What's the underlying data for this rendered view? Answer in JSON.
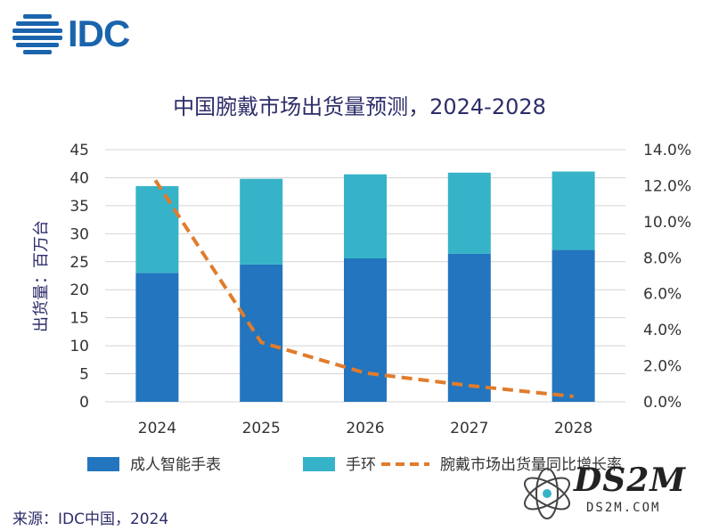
{
  "brand": {
    "logo_text": "IDC",
    "logo_color": "#1a64ad"
  },
  "chart_data": {
    "type": "bar",
    "title": "中国腕戴市场出货量预测，2024-2028",
    "categories": [
      "2024",
      "2025",
      "2026",
      "2027",
      "2028"
    ],
    "series": [
      {
        "name": "成人智能手表",
        "values": [
          23,
          24.5,
          25.6,
          26.4,
          27.1
        ],
        "color": "#2275be",
        "stacked": true
      },
      {
        "name": "手环",
        "values": [
          15.5,
          15.3,
          15.0,
          14.5,
          14.0
        ],
        "color": "#36b3c8",
        "stacked": true
      },
      {
        "name": "腕戴市场出货量同比增长率",
        "values": [
          12.3,
          3.3,
          1.6,
          0.9,
          0.3
        ],
        "color": "#e17c2c",
        "axis": "right",
        "style": "dashed-line"
      }
    ],
    "ylabel": "出货量：百万台",
    "ylim": [
      0,
      45
    ],
    "yticks": [
      "0",
      "5",
      "10",
      "15",
      "20",
      "25",
      "30",
      "35",
      "40",
      "45"
    ],
    "y2lim": [
      0,
      14
    ],
    "y2ticks": [
      "0.0%",
      "2.0%",
      "4.0%",
      "6.0%",
      "8.0%",
      "10.0%",
      "12.0%",
      "14.0%"
    ],
    "grid": true,
    "legend": "bottom"
  },
  "source": "来源：IDC中国，2024",
  "watermark": {
    "text": "DS2M",
    "sub": "DS2M.COM"
  }
}
